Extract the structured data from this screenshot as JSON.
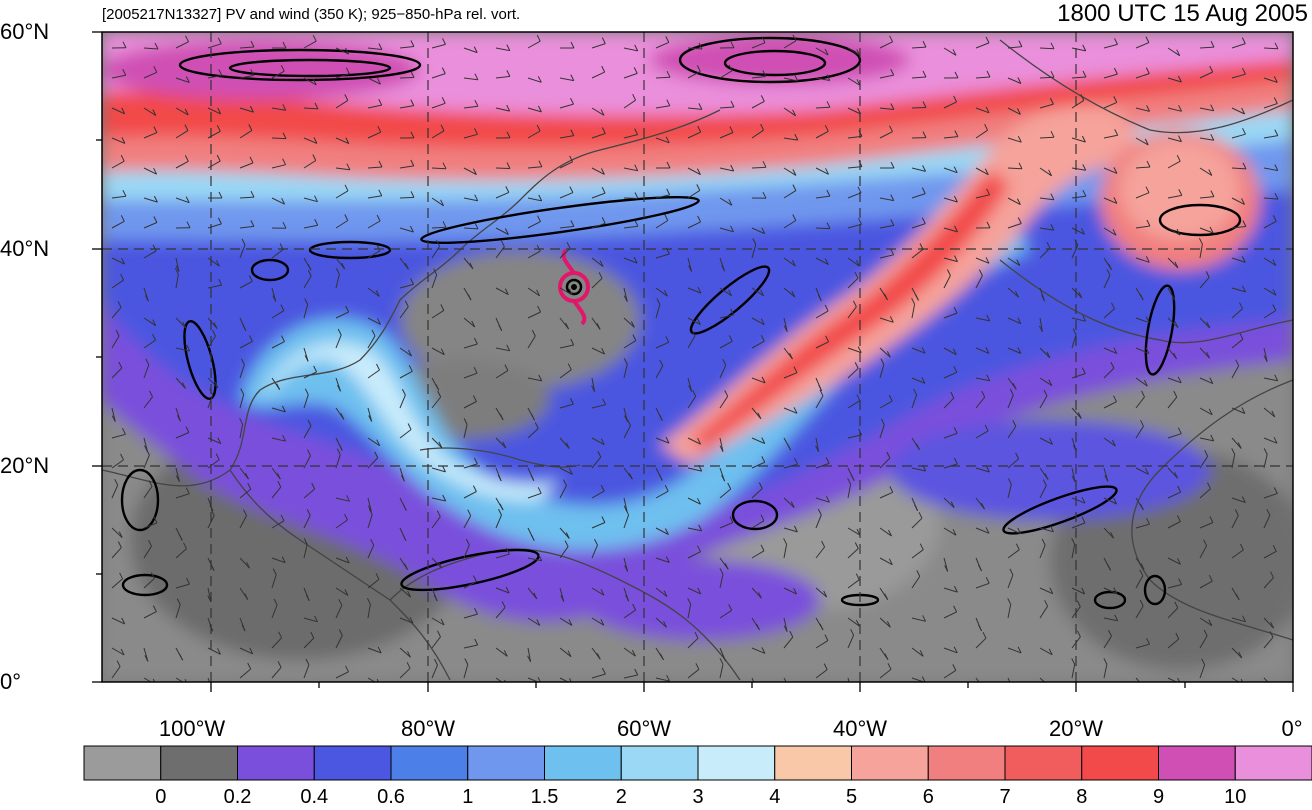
{
  "header": {
    "left_title": "[2005217N13327] PV and wind (350 K); 925−850-hPa rel. vort.",
    "right_title": "1800 UTC 15 Aug 2005"
  },
  "map": {
    "projection": "cylindrical-equidistant",
    "lon_range": [
      -110,
      0
    ],
    "lat_range": [
      0,
      60
    ],
    "lat_labels": [
      {
        "lat": 60,
        "text": "60°N"
      },
      {
        "lat": 40,
        "text": "40°N"
      },
      {
        "lat": 20,
        "text": "20°N"
      },
      {
        "lat": 0,
        "text": "0°"
      }
    ],
    "lon_labels": [
      {
        "lon": -100,
        "text": "100°W"
      },
      {
        "lon": -80,
        "text": "80°W"
      },
      {
        "lon": -60,
        "text": "60°W"
      },
      {
        "lon": -40,
        "text": "40°W"
      },
      {
        "lon": -20,
        "text": "20°W"
      },
      {
        "lon": 0,
        "text": "0°"
      }
    ],
    "gridlines": "dashed every 20°",
    "storm_center": {
      "lon": -66,
      "lat": 36.5
    }
  },
  "colorbar": {
    "levels": [
      "0",
      "0.2",
      "0.4",
      "0.6",
      "1",
      "1.5",
      "2",
      "3",
      "4",
      "5",
      "6",
      "7",
      "8",
      "9",
      "10"
    ],
    "colors": [
      "#9b9b9b",
      "#6e6e6e",
      "#7a4fdc",
      "#4b57e0",
      "#4d7fe8",
      "#6f97ee",
      "#6ec0ef",
      "#9ad8f5",
      "#c9ecfb",
      "#f9c8a8",
      "#f5a39b",
      "#f17f7f",
      "#f15c5c",
      "#f24a4a",
      "#cf4fb4",
      "#ea8fdb"
    ]
  }
}
